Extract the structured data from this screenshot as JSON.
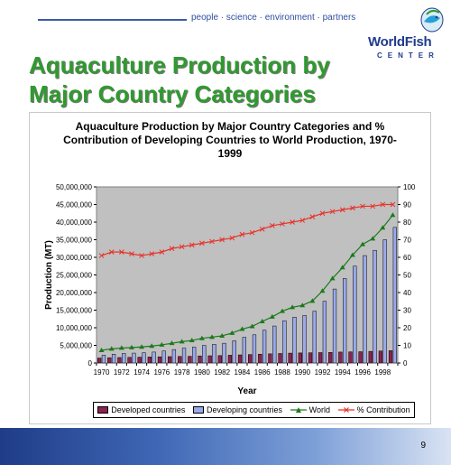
{
  "header": {
    "tagline": "people · science · environment · partners",
    "logo_word": "WorldFish",
    "logo_sub": "CENTER",
    "logo_icon": "fish-icon"
  },
  "slide": {
    "title": "Aquaculture Production by\nMajor Country Categories",
    "page_number": "9"
  },
  "colors": {
    "title_green": "#2f9a2f",
    "developed": "#8b2252",
    "developing": "#9aa9ea",
    "world": "#1a7a1a",
    "contribution": "#e8322a",
    "plot_bg": "#c0c0c0"
  },
  "chart_data": {
    "type": "bar",
    "title": "Aquaculture Production by Major Country Categories and %\nContribution of Developing Countries to World Production, 1970-\n1999",
    "xlabel": "Year",
    "ylabel": "Production (MT)",
    "ylim": [
      0,
      50000000
    ],
    "y2lim": [
      0,
      100
    ],
    "yticks": [
      "0",
      "5,000,000",
      "10,000,000",
      "15,000,000",
      "20,000,000",
      "25,000,000",
      "30,000,000",
      "35,000,000",
      "40,000,000",
      "45,000,000",
      "50,000,000"
    ],
    "y2ticks": [
      "0",
      "10",
      "20",
      "30",
      "40",
      "50",
      "60",
      "70",
      "80",
      "90",
      "100"
    ],
    "x": [
      1970,
      1971,
      1972,
      1973,
      1974,
      1975,
      1976,
      1977,
      1978,
      1979,
      1980,
      1981,
      1982,
      1983,
      1984,
      1985,
      1986,
      1987,
      1988,
      1989,
      1990,
      1991,
      1992,
      1993,
      1994,
      1995,
      1996,
      1997,
      1998,
      1999
    ],
    "xticks": [
      "1970",
      "1972",
      "1974",
      "1976",
      "1978",
      "1980",
      "1982",
      "1984",
      "1986",
      "1988",
      "1990",
      "1992",
      "1994",
      "1996",
      "1998"
    ],
    "series": [
      {
        "name": "Developed countries",
        "kind": "bar",
        "values": [
          1400000,
          1500000,
          1550000,
          1600000,
          1650000,
          1700000,
          1750000,
          1800000,
          1850000,
          1900000,
          2000000,
          2050000,
          2100000,
          2200000,
          2300000,
          2400000,
          2500000,
          2600000,
          2700000,
          2800000,
          2850000,
          2900000,
          2950000,
          3000000,
          3100000,
          3150000,
          3200000,
          3300000,
          3400000,
          3500000
        ]
      },
      {
        "name": "Developing countries",
        "kind": "bar",
        "values": [
          2200000,
          2500000,
          2700000,
          2800000,
          2900000,
          3100000,
          3400000,
          3800000,
          4200000,
          4500000,
          5000000,
          5300000,
          5600000,
          6300000,
          7300000,
          8000000,
          9300000,
          10500000,
          12000000,
          13000000,
          13500000,
          14700000,
          17500000,
          21000000,
          24000000,
          27500000,
          30500000,
          32000000,
          35000000,
          38500000
        ]
      },
      {
        "name": "World",
        "kind": "line",
        "values": [
          3600000,
          4000000,
          4250000,
          4400000,
          4550000,
          4800000,
          5150000,
          5600000,
          6050000,
          6400000,
          7000000,
          7350000,
          7700000,
          8500000,
          9600000,
          10400000,
          11800000,
          13100000,
          14700000,
          15800000,
          16350000,
          17600000,
          20450000,
          24000000,
          27100000,
          30650000,
          33700000,
          35300000,
          38400000,
          42000000
        ]
      },
      {
        "name": "% Contribution",
        "kind": "line",
        "axis": "right",
        "values": [
          61,
          63,
          63,
          62,
          61,
          62,
          63,
          65,
          66,
          67,
          68,
          69,
          70,
          71,
          73,
          74,
          76,
          78,
          79,
          80,
          81,
          83,
          85,
          86,
          87,
          88,
          89,
          89,
          90,
          90
        ]
      }
    ],
    "legend": "bottom"
  }
}
